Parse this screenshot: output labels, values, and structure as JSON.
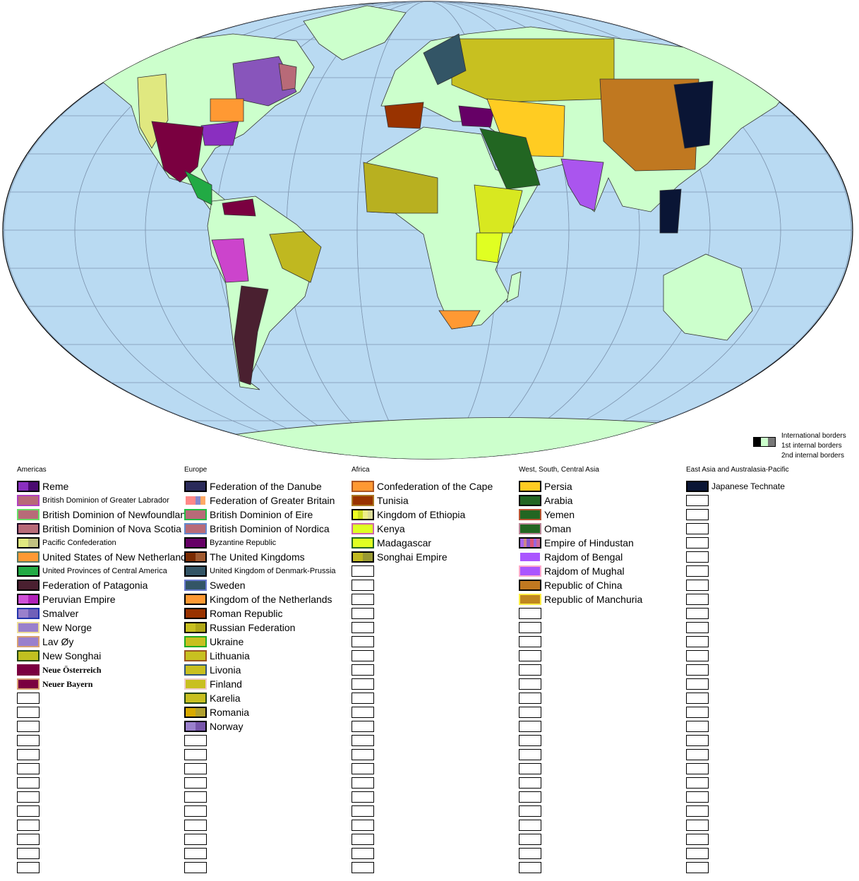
{
  "map": {
    "ocean_color": "#b9daf2",
    "land_color": "#ccffcc",
    "border_key": {
      "swatch_colors": [
        "#000000",
        "#ccffcc",
        "#777777"
      ],
      "labels": [
        "International borders",
        "1st internal borders",
        "2nd internal borders"
      ]
    }
  },
  "legend": [
    {
      "title": "Americas",
      "items": [
        {
          "label": "Reme",
          "fill": [
            "#8a2fc0",
            "#4a0a70"
          ],
          "border": "#000000"
        },
        {
          "label": "British Dominion of Greater Labrador",
          "fill": [
            "#b86a78"
          ],
          "border": "#b040c0",
          "size": "small"
        },
        {
          "label": "British Dominion of Newfoundland",
          "fill": [
            "#b86a78"
          ],
          "border": "#66dd66"
        },
        {
          "label": "British Dominion of Nova Scotia",
          "fill": [
            "#b86a78"
          ],
          "border": "#1a0020"
        },
        {
          "label": "Pacific Confederation",
          "fill": [
            "#e0e880",
            "#c0c080"
          ],
          "border": "#000000",
          "size": "small"
        },
        {
          "label": "United States of New Netherland",
          "fill": [
            "#ff9933"
          ],
          "border": "#557766"
        },
        {
          "label": "United Provinces of Central America",
          "fill": [
            "#22aa44"
          ],
          "border": "#000000",
          "size": "small"
        },
        {
          "label": "Federation of Patagonia",
          "fill": [
            "#4a2030"
          ],
          "border": "#000000"
        },
        {
          "label": "Peruvian Empire",
          "fill": [
            "#d050d8",
            "#b020b8"
          ],
          "border": "#000000"
        },
        {
          "label": "Smalver",
          "fill": [
            "#9a80cc",
            "#7060b8"
          ],
          "border": "#2233aa"
        },
        {
          "label": "New Norge",
          "fill": [
            "#9a80cc"
          ],
          "border": "#eedd99"
        },
        {
          "label": "Lav Øy",
          "fill": [
            "#9a80cc"
          ],
          "border": "#d8a070"
        },
        {
          "label": "New Songhai",
          "fill": [
            "#c0c020"
          ],
          "border": "#224411"
        },
        {
          "label": "Neue Österreich",
          "fill": [
            "#7a0040"
          ],
          "border": "#7a0040",
          "size": "serif"
        },
        {
          "label": "Neuer Bayern",
          "fill": [
            "#7a0040"
          ],
          "border": "#d8a070",
          "size": "serif"
        }
      ],
      "empty_rows": 13
    },
    {
      "title": "Europe",
      "items": [
        {
          "label": "Federation of the Danube",
          "fill": [
            "#2a2a5a"
          ],
          "border": "#000000"
        },
        {
          "label": "Federation of Greater Britain",
          "fill": [
            "#ff8888",
            "#ff8888",
            "#8888cc",
            "#ffaa66"
          ],
          "border": "#ffffff"
        },
        {
          "label": "British Dominion of Eire",
          "fill": [
            "#b86a78"
          ],
          "border": "#22bb44"
        },
        {
          "label": "British Dominion of Nordica",
          "fill": [
            "#b86a78"
          ],
          "border": "#6688cc"
        },
        {
          "label": "Byzantine Republic",
          "fill": [
            "#660066"
          ],
          "border": "#000000",
          "size": "small"
        },
        {
          "label": "The United Kingdoms",
          "fill": [
            "#7a2a00",
            "#a05a30"
          ],
          "border": "#000000"
        },
        {
          "label": "United Kingdom of Denmark-Prussia",
          "fill": [
            "#335566"
          ],
          "border": "#000000",
          "size": "small"
        },
        {
          "label": "Sweden",
          "fill": [
            "#335566"
          ],
          "border": "#6677cc"
        },
        {
          "label": "Kingdom of the Netherlands",
          "fill": [
            "#ff9933"
          ],
          "border": "#000000"
        },
        {
          "label": "Roman Republic",
          "fill": [
            "#993300"
          ],
          "border": "#000000"
        },
        {
          "label": "Russian Federation",
          "fill": [
            "#c8c020",
            "#b0a818"
          ],
          "border": "#000000"
        },
        {
          "label": "Ukraine",
          "fill": [
            "#c8c020"
          ],
          "border": "#22aa22"
        },
        {
          "label": "Lithuania",
          "fill": [
            "#c8c020"
          ],
          "border": "#995522"
        },
        {
          "label": "Livonia",
          "fill": [
            "#c8c020"
          ],
          "border": "#335577"
        },
        {
          "label": "Finland",
          "fill": [
            "#c8c020"
          ],
          "border": "#eecccc"
        },
        {
          "label": "Karelia",
          "fill": [
            "#c8c020"
          ],
          "border": "#224411"
        },
        {
          "label": "Romania",
          "fill": [
            "#d8aa00",
            "#b0a030"
          ],
          "border": "#000000"
        },
        {
          "label": "Norway",
          "fill": [
            "#9a80cc",
            "#7755aa"
          ],
          "border": "#000000"
        }
      ],
      "empty_rows": 10
    },
    {
      "title": "Africa",
      "items": [
        {
          "label": "Confederation of the Cape",
          "fill": [
            "#ff9933"
          ],
          "border": "#aa5522"
        },
        {
          "label": "Tunisia",
          "fill": [
            "#993300"
          ],
          "border": "#aa7722"
        },
        {
          "label": "Kingdom of Ethiopia",
          "fill": [
            "#eeff22",
            "#ccdd22",
            "#eeee88",
            "#dddd99"
          ],
          "border": "#000000"
        },
        {
          "label": "Kenya",
          "fill": [
            "#e0ff22"
          ],
          "border": "#cc66aa"
        },
        {
          "label": "Madagascar",
          "fill": [
            "#e0ff22"
          ],
          "border": "#226622"
        },
        {
          "label": "Songhai Empire",
          "fill": [
            "#c0b820",
            "#999933"
          ],
          "border": "#000000"
        }
      ],
      "empty_rows": 22
    },
    {
      "title": "West, South, Central Asia",
      "items": [
        {
          "label": "Persia",
          "fill": [
            "#ffcc22"
          ],
          "border": "#000000"
        },
        {
          "label": "Arabia",
          "fill": [
            "#226622"
          ],
          "border": "#000000"
        },
        {
          "label": "Yemen",
          "fill": [
            "#226622"
          ],
          "border": "#bb5533"
        },
        {
          "label": "Oman",
          "fill": [
            "#226622"
          ],
          "border": "#bb8899"
        },
        {
          "label": "Empire of Hindustan",
          "fill": [
            "#aa66ee",
            "#cc8888",
            "#8855cc",
            "#dd5577",
            "#9966dd",
            "#cc6699"
          ],
          "border": "#000000"
        },
        {
          "label": "Rajdom of Bengal",
          "fill": [
            "#aa55ff"
          ],
          "border": "#ffffff"
        },
        {
          "label": "Rajdom of Mughal",
          "fill": [
            "#aa55ff"
          ],
          "border": "#ffaacc"
        },
        {
          "label": "Republic of China",
          "fill": [
            "#c07820"
          ],
          "border": "#000000"
        },
        {
          "label": "Republic of Manchuria",
          "fill": [
            "#c08820"
          ],
          "border": "#ffee44"
        }
      ],
      "empty_rows": 19
    },
    {
      "title": "East Asia and Australasia-Pacific",
      "items": [
        {
          "label": "Japanese Technate",
          "fill": [
            "#0a1535"
          ],
          "border": "#000000",
          "size": "small12"
        }
      ],
      "empty_rows": 27
    }
  ]
}
